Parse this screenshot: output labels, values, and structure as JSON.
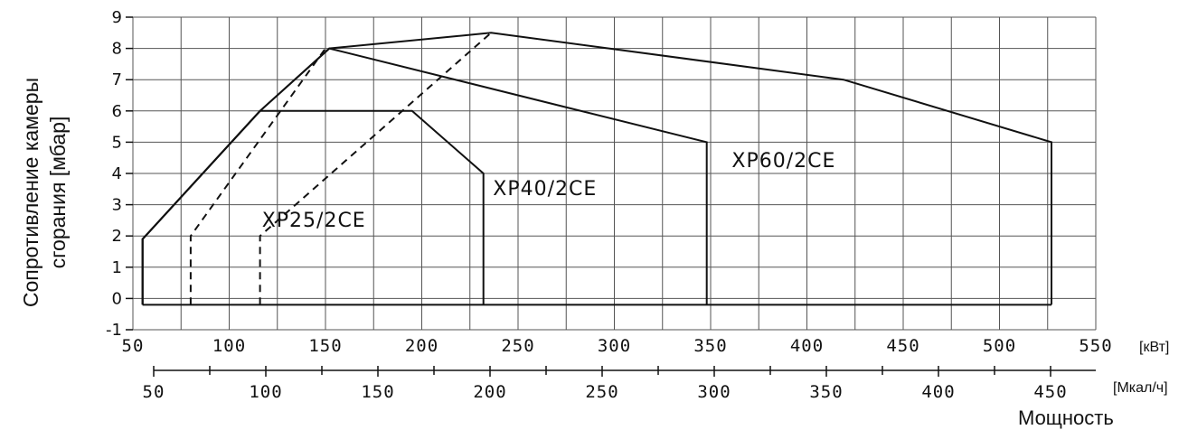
{
  "chart_data": {
    "type": "line",
    "ylabel": [
      "Сопротивление камеры",
      "сгорания [мбар]"
    ],
    "xlabel": "Мощность",
    "x_unit": "[кВт]",
    "x2_unit": "[Мкал/ч]",
    "xlim": [
      50,
      550
    ],
    "ylim": [
      -1,
      9
    ],
    "x_ticks": [
      50,
      100,
      150,
      200,
      250,
      300,
      350,
      400,
      450,
      500,
      550
    ],
    "x2_ticks": [
      50,
      100,
      150,
      200,
      250,
      300,
      350,
      400,
      450
    ],
    "y_ticks": [
      -1,
      0,
      1,
      2,
      3,
      4,
      5,
      6,
      7,
      8,
      9
    ],
    "grid": true,
    "series": [
      {
        "name": "XP25/2CE",
        "label_at": [
          117,
          2.3
        ],
        "points": [
          [
            55,
            -0.2
          ],
          [
            55,
            1.9
          ],
          [
            116,
            6
          ],
          [
            195,
            6
          ],
          [
            232,
            4
          ],
          [
            232,
            -0.2
          ]
        ],
        "dashed": [
          [
            80,
            -0.2
          ],
          [
            80,
            2
          ],
          [
            150,
            8
          ]
        ]
      },
      {
        "name": "XP40/2CE",
        "label_at": [
          237,
          3.3
        ],
        "points": [
          [
            55,
            -0.2
          ],
          [
            55,
            1.9
          ],
          [
            116,
            6
          ],
          [
            152,
            8
          ],
          [
            348,
            5
          ],
          [
            348,
            -0.2
          ]
        ],
        "dashed": [
          [
            116,
            -0.2
          ],
          [
            116,
            2
          ],
          [
            236,
            8.5
          ]
        ]
      },
      {
        "name": "XP60/2CE",
        "label_at": [
          361,
          4.2
        ],
        "points": [
          [
            55,
            -0.2
          ],
          [
            55,
            1.9
          ],
          [
            116,
            6
          ],
          [
            152,
            8
          ],
          [
            236,
            8.5
          ],
          [
            419,
            7
          ],
          [
            527,
            5
          ],
          [
            527,
            -0.2
          ]
        ]
      }
    ]
  }
}
